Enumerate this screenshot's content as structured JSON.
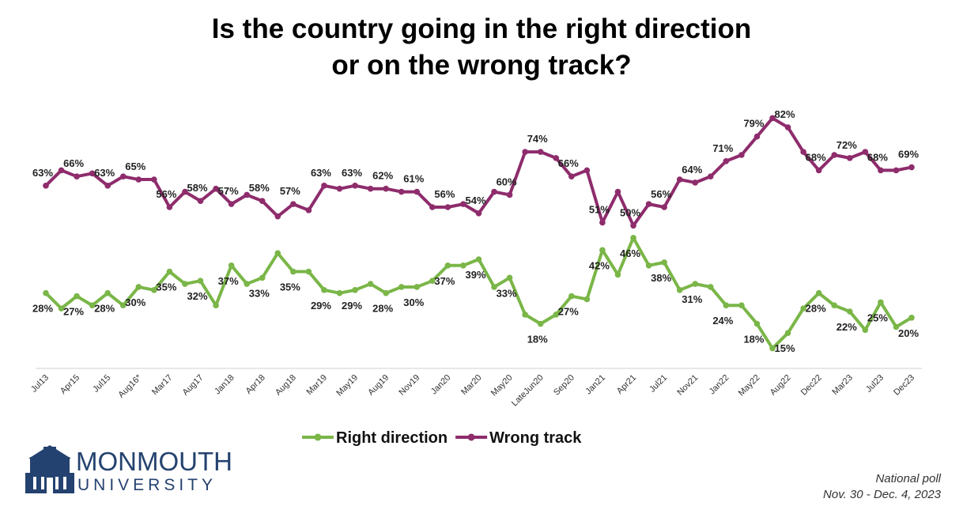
{
  "chart_data": {
    "type": "line",
    "title": "Is the country going in the right direction or on the wrong track?",
    "categories": [
      "Jul13",
      null,
      "Apr15",
      null,
      "Jul15",
      null,
      "Aug16*",
      null,
      "Mar17",
      null,
      "Aug17",
      null,
      "Jan18",
      null,
      "Apr18",
      null,
      "Aug18",
      null,
      "Mar19",
      null,
      "May19",
      null,
      "Aug19",
      null,
      "Nov19",
      null,
      "Jan20",
      null,
      "Mar20",
      null,
      "May20",
      null,
      "LateJun20",
      null,
      "Sep20",
      null,
      "Jan21",
      null,
      "Apr21",
      null,
      "Jul21",
      null,
      "Nov21",
      null,
      "Jan22",
      null,
      "May22",
      null,
      "Aug22",
      null,
      "Dec22",
      null,
      "Mar23",
      null,
      "Jul23",
      null,
      "Dec23"
    ],
    "ylim": [
      5,
      90
    ],
    "series": [
      {
        "name": "Right direction",
        "color": "#7ab648",
        "values": [
          28,
          23,
          27,
          24,
          28,
          24,
          30,
          29,
          35,
          31,
          32,
          24,
          37,
          31,
          33,
          41,
          35,
          35,
          29,
          28,
          29,
          31,
          28,
          30,
          30,
          32,
          37,
          37,
          39,
          30,
          33,
          21,
          18,
          21,
          27,
          26,
          42,
          34,
          46,
          37,
          38,
          29,
          31,
          30,
          24,
          24,
          18,
          10,
          15,
          23,
          28,
          24,
          22,
          16,
          25,
          17,
          20
        ],
        "value_labels": [
          "28%",
          null,
          "27%",
          null,
          "28%",
          null,
          "30%",
          null,
          "35%",
          null,
          "32%",
          null,
          "37%",
          null,
          "33%",
          null,
          "35%",
          null,
          "29%",
          null,
          "29%",
          null,
          "28%",
          null,
          "30%",
          null,
          "37%",
          null,
          "39%",
          null,
          "33%",
          null,
          "18%",
          null,
          "27%",
          null,
          "42%",
          null,
          "46%",
          null,
          "38%",
          null,
          "31%",
          null,
          "24%",
          null,
          "18%",
          null,
          "15%",
          null,
          "28%",
          null,
          "22%",
          null,
          "25%",
          null,
          "20%"
        ]
      },
      {
        "name": "Wrong track",
        "color": "#8e2c6c",
        "values": [
          63,
          68,
          66,
          67,
          63,
          66,
          65,
          65,
          56,
          61,
          58,
          62,
          57,
          60,
          58,
          53,
          57,
          55,
          63,
          62,
          63,
          62,
          62,
          61,
          61,
          56,
          56,
          57,
          54,
          61,
          60,
          74,
          74,
          72,
          66,
          68,
          51,
          61,
          50,
          57,
          56,
          65,
          64,
          66,
          71,
          73,
          79,
          85,
          82,
          74,
          68,
          73,
          72,
          74,
          68,
          68,
          69
        ],
        "value_labels": [
          "63%",
          null,
          "66%",
          null,
          "63%",
          null,
          "65%",
          null,
          "56%",
          null,
          "58%",
          null,
          "57%",
          null,
          "58%",
          null,
          "57%",
          null,
          "63%",
          null,
          "63%",
          null,
          "62%",
          null,
          "61%",
          null,
          "56%",
          null,
          "54%",
          null,
          "60%",
          null,
          "74%",
          null,
          "66%",
          null,
          "51%",
          null,
          "50%",
          null,
          "56%",
          null,
          "64%",
          null,
          "71%",
          null,
          "79%",
          null,
          "82%",
          null,
          "68%",
          null,
          "72%",
          null,
          "68%",
          null,
          "69%"
        ]
      }
    ],
    "source": [
      "National poll",
      "Nov. 30 - Dec. 4, 2023"
    ]
  },
  "branding": {
    "name": "MONMOUTH",
    "subname": "UNIVERSITY"
  }
}
